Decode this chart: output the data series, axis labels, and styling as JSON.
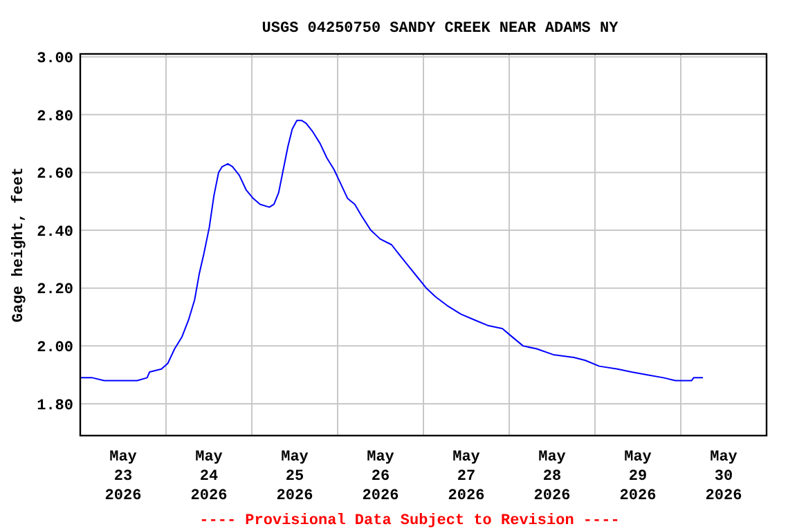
{
  "chart_data": {
    "type": "line",
    "title": "USGS 04250750 SANDY CREEK NEAR ADAMS NY",
    "ylabel": "Gage height, feet",
    "annotations": [
      "---- Provisional Data Subject to Revision ----"
    ],
    "xlim": [
      "2026-05-23T00:00",
      "2026-05-31T00:00"
    ],
    "xticks": [
      {
        "value": "2026-05-23T12:00",
        "label": "May\n23\n2026"
      },
      {
        "value": "2026-05-24T00:00",
        "label": null
      },
      {
        "value": "2026-05-24T12:00",
        "label": "May\n24\n2026"
      },
      {
        "value": "2026-05-25T00:00",
        "label": null
      },
      {
        "value": "2026-05-25T12:00",
        "label": "May\n25\n2026"
      },
      {
        "value": "2026-05-26T00:00",
        "label": null
      },
      {
        "value": "2026-05-26T12:00",
        "label": "May\n26\n2026"
      },
      {
        "value": "2026-05-27T00:00",
        "label": null
      },
      {
        "value": "2026-05-27T12:00",
        "label": "May\n27\n2026"
      },
      {
        "value": "2026-05-28T00:00",
        "label": null
      },
      {
        "value": "2026-05-28T12:00",
        "label": "May\n28\n2026"
      },
      {
        "value": "2026-05-29T00:00",
        "label": null
      },
      {
        "value": "2026-05-29T12:00",
        "label": "May\n29\n2026"
      },
      {
        "value": "2026-05-30T00:00",
        "label": null
      },
      {
        "value": "2026-05-30T12:00",
        "label": "May\n30\n2026"
      }
    ],
    "ylim": [
      1.69,
      3.01
    ],
    "yticks": [
      {
        "value": 1.8,
        "label": "1.80"
      },
      {
        "value": 2.0,
        "label": "2.00"
      },
      {
        "value": 2.2,
        "label": "2.20"
      },
      {
        "value": 2.4,
        "label": "2.40"
      },
      {
        "value": 2.6,
        "label": "2.60"
      },
      {
        "value": 2.8,
        "label": "2.80"
      },
      {
        "value": 3.0,
        "label": "3.00"
      }
    ],
    "grid": true,
    "marker": "none",
    "line_style": "solid",
    "x": [
      "2026-05-23T00:00",
      "2026-05-23T03:24",
      "2026-05-23T06:42",
      "2026-05-23T15:54",
      "2026-05-23T18:42",
      "2026-05-23T19:24",
      "2026-05-23T22:42",
      "2026-05-24T00:30",
      "2026-05-24T02:24",
      "2026-05-24T04:24",
      "2026-05-24T06:18",
      "2026-05-24T08:00",
      "2026-05-24T09:18",
      "2026-05-24T10:36",
      "2026-05-24T12:06",
      "2026-05-24T13:24",
      "2026-05-24T14:42",
      "2026-05-24T15:42",
      "2026-05-24T17:18",
      "2026-05-24T18:36",
      "2026-05-24T20:30",
      "2026-05-24T22:24",
      "2026-05-25T00:24",
      "2026-05-25T02:18",
      "2026-05-25T04:54",
      "2026-05-25T06:12",
      "2026-05-25T07:30",
      "2026-05-25T08:48",
      "2026-05-25T10:06",
      "2026-05-25T11:18",
      "2026-05-25T12:36",
      "2026-05-25T13:54",
      "2026-05-25T15:12",
      "2026-05-25T17:06",
      "2026-05-25T19:06",
      "2026-05-25T21:00",
      "2026-05-25T23:00",
      "2026-05-26T00:54",
      "2026-05-26T02:48",
      "2026-05-26T04:48",
      "2026-05-26T06:42",
      "2026-05-26T09:18",
      "2026-05-26T11:54",
      "2026-05-26T15:06",
      "2026-05-26T17:00",
      "2026-05-26T19:36",
      "2026-05-26T22:12",
      "2026-05-27T00:48",
      "2026-05-27T03:24",
      "2026-05-27T06:36",
      "2026-05-27T10:30",
      "2026-05-27T14:18",
      "2026-05-27T18:12",
      "2026-05-27T22:06",
      "2026-05-28T00:00",
      "2026-05-28T03:54",
      "2026-05-28T07:42",
      "2026-05-28T12:18",
      "2026-05-28T18:06",
      "2026-05-28T21:18",
      "2026-05-29T01:12",
      "2026-05-29T06:18",
      "2026-05-29T10:12",
      "2026-05-29T14:42",
      "2026-05-29T19:12",
      "2026-05-29T22:30",
      "2026-05-30T03:00",
      "2026-05-30T03:36",
      "2026-05-30T06:12"
    ],
    "series": [
      {
        "color": "#0000ff",
        "values": [
          1.89,
          1.89,
          1.88,
          1.88,
          1.89,
          1.91,
          1.92,
          1.94,
          1.99,
          2.03,
          2.09,
          2.16,
          2.25,
          2.32,
          2.41,
          2.52,
          2.6,
          2.62,
          2.63,
          2.62,
          2.59,
          2.54,
          2.51,
          2.49,
          2.48,
          2.49,
          2.53,
          2.61,
          2.69,
          2.75,
          2.78,
          2.78,
          2.77,
          2.74,
          2.7,
          2.65,
          2.61,
          2.56,
          2.51,
          2.49,
          2.45,
          2.4,
          2.37,
          2.35,
          2.32,
          2.28,
          2.24,
          2.2,
          2.17,
          2.14,
          2.11,
          2.09,
          2.07,
          2.06,
          2.04,
          2.0,
          1.99,
          1.97,
          1.96,
          1.95,
          1.93,
          1.92,
          1.91,
          1.9,
          1.89,
          1.88,
          1.88,
          1.89,
          1.89
        ]
      }
    ]
  }
}
